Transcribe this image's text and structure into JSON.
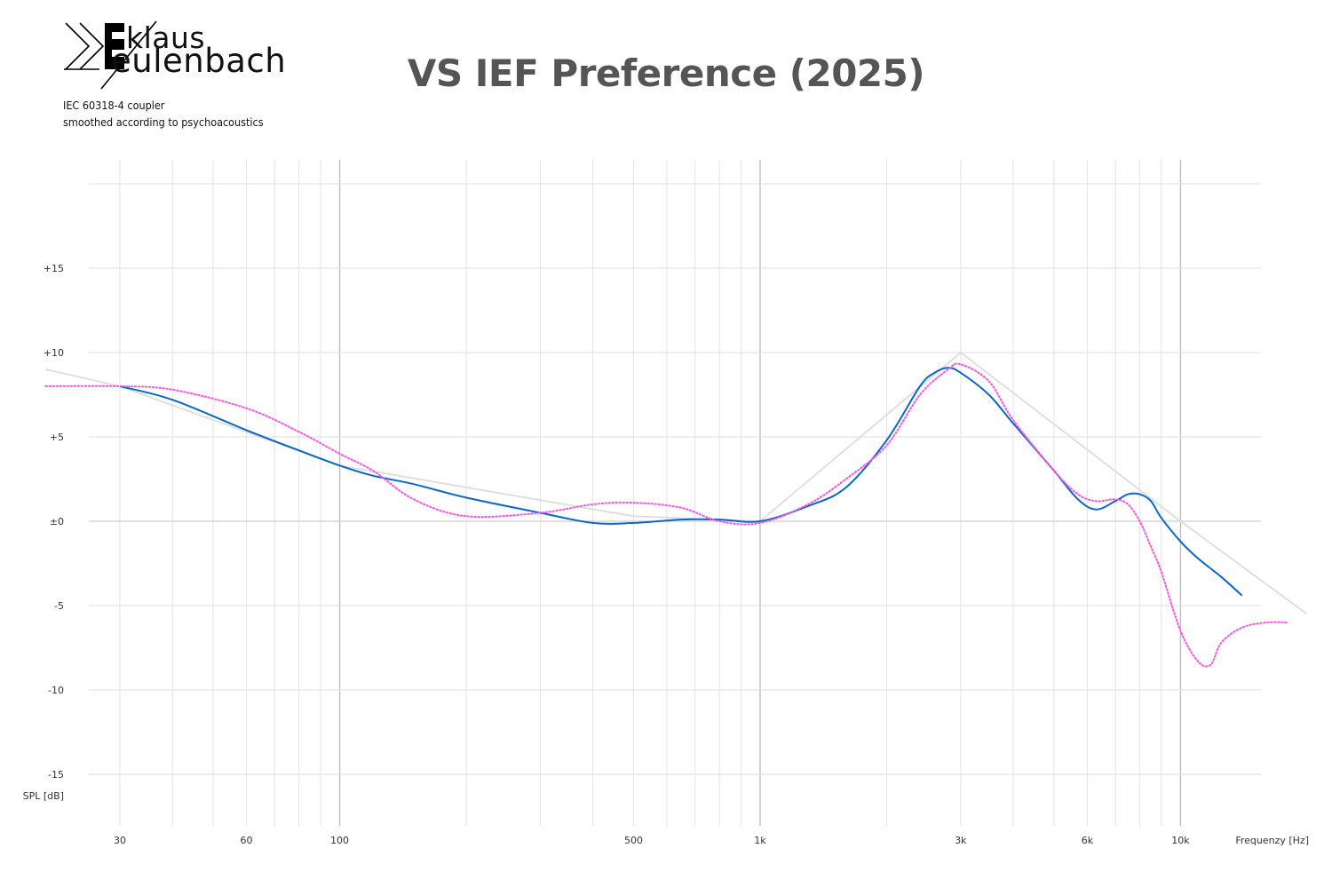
{
  "header": {
    "title": "VS IEF Preference (2025)",
    "logo_line1": "klaus",
    "logo_line2": "eulenbach",
    "note_line1": "IEC 60318-4 coupler",
    "note_line2": "smoothed according to psychoacoustics"
  },
  "chart_data": {
    "type": "line",
    "title": "VS IEF Preference (2025)",
    "xlabel": "Frequenzy [Hz]",
    "ylabel": "SPL [dB]",
    "xscale": "log",
    "xlim": [
      25,
      21000
    ],
    "ylim": [
      -18,
      21
    ],
    "grid": true,
    "x_ticks": [
      {
        "value": 30,
        "label": "30"
      },
      {
        "value": 60,
        "label": "60"
      },
      {
        "value": 100,
        "label": "100"
      },
      {
        "value": 500,
        "label": "500"
      },
      {
        "value": 1000,
        "label": "1k"
      },
      {
        "value": 3000,
        "label": "3k"
      },
      {
        "value": 6000,
        "label": "6k"
      },
      {
        "value": 10000,
        "label": "10k"
      }
    ],
    "y_ticks": [
      {
        "value": 15,
        "label": "+15"
      },
      {
        "value": 10,
        "label": "+10"
      },
      {
        "value": 5,
        "label": "+5"
      },
      {
        "value": 0,
        "label": "±0"
      },
      {
        "value": -5,
        "label": "-5"
      },
      {
        "value": -10,
        "label": "-10"
      },
      {
        "value": -15,
        "label": "-15"
      }
    ],
    "series": [
      {
        "key": "reference",
        "color": "#dddddd",
        "style": "solid",
        "x": [
          20,
          30,
          100,
          500,
          1000,
          3000,
          10000,
          20000
        ],
        "y": [
          9,
          8,
          3.3,
          0.3,
          0,
          10,
          0,
          -5.5
        ]
      },
      {
        "key": "measured",
        "color": "#0a66c8",
        "style": "solid",
        "x": [
          30,
          40,
          60,
          80,
          100,
          120,
          150,
          200,
          300,
          400,
          500,
          650,
          800,
          1000,
          1300,
          1600,
          2000,
          2400,
          2600,
          2800,
          3000,
          3500,
          4000,
          5000,
          5700,
          6300,
          7000,
          7500,
          8000,
          8500,
          9000,
          10000,
          11000,
          12500,
          14000
        ],
        "y": [
          8,
          7.2,
          5.4,
          4.2,
          3.3,
          2.7,
          2.2,
          1.4,
          0.5,
          -0.1,
          -0.1,
          0.1,
          0.1,
          0,
          0.9,
          2,
          4.8,
          8,
          8.8,
          9.1,
          8.8,
          7.5,
          5.8,
          3,
          1.3,
          0.7,
          1.2,
          1.6,
          1.6,
          1.2,
          0.2,
          -1.2,
          -2.2,
          -3.3,
          -4.4
        ]
      },
      {
        "key": "target",
        "color": "#ff55dd",
        "style": "dotted",
        "x": [
          20,
          30,
          40,
          60,
          80,
          100,
          120,
          150,
          200,
          300,
          400,
          500,
          650,
          800,
          1000,
          1300,
          1600,
          2000,
          2400,
          2800,
          3000,
          3500,
          4000,
          5000,
          5700,
          6300,
          7000,
          7500,
          8000,
          8500,
          9000,
          10000,
          11000,
          11800,
          12500,
          14000,
          16000,
          18000
        ],
        "y": [
          8,
          8,
          7.8,
          6.7,
          5.3,
          4,
          3,
          1.3,
          0.3,
          0.5,
          1,
          1.1,
          0.8,
          0,
          -0.1,
          1,
          2.5,
          4.5,
          7.5,
          9,
          9.3,
          8.3,
          6,
          3,
          1.6,
          1.2,
          1.3,
          1,
          0,
          -1.5,
          -3,
          -6.5,
          -8.3,
          -8.5,
          -7.2,
          -6.3,
          -6,
          -6
        ]
      }
    ]
  }
}
